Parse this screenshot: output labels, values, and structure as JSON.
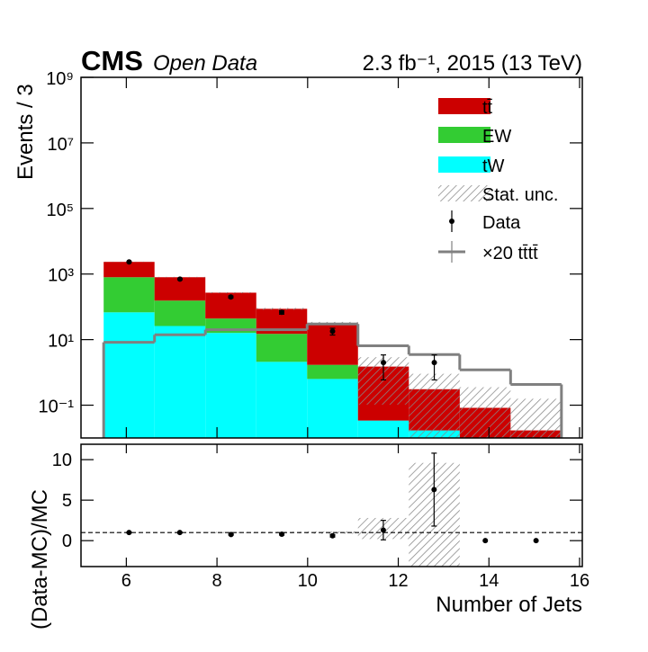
{
  "chart_data": [
    {
      "type": "stacked_histogram",
      "experiment": "CMS",
      "subtitle": "Open Data",
      "lumi_label": "2.3 fb⁻¹, 2015 (13 TeV)",
      "ylabel": "Events / 3",
      "log_y": true,
      "xlim": [
        5,
        16.06
      ],
      "xticks": [
        6,
        8,
        10,
        12,
        14,
        16
      ],
      "ylim": [
        0.01,
        1000000000
      ],
      "yticks": [
        {
          "value": 0.1,
          "label": "10⁻¹"
        },
        {
          "value": 10,
          "label": "10¹"
        },
        {
          "value": 1000,
          "label": "10³"
        },
        {
          "value": 100000,
          "label": "10⁵"
        },
        {
          "value": 10000000,
          "label": "10⁷"
        },
        {
          "value": 1000000000,
          "label": "10⁹"
        }
      ],
      "bins": [
        5.5,
        6.622,
        7.744,
        8.867,
        9.989,
        11.111,
        12.233,
        13.356,
        14.478,
        15.6
      ],
      "series": [
        {
          "name": "tt̄",
          "color": "#cc0000",
          "values": [
            1550,
            645,
            226,
            72,
            30,
            1.47,
            0.29,
            0.083,
            0.017
          ]
        },
        {
          "name": "EW",
          "color": "#33cc33",
          "values": [
            732,
            129,
            28,
            12.9,
            1.07,
            0,
            0,
            0,
            0
          ]
        },
        {
          "name": "tW",
          "color": "#00ffff",
          "values": [
            68,
            26,
            16,
            2.1,
            0.63,
            0.034,
            0.017,
            0,
            0
          ]
        }
      ],
      "stat_unc": {
        "name": "Stat. unc.",
        "color": "#888888",
        "values": [
          40,
          20,
          10,
          6,
          3,
          1.4,
          0.6,
          0.27,
          0.14
        ]
      },
      "data": {
        "name": "Data",
        "color": "#000000",
        "values": [
          2350,
          700,
          200,
          68,
          18,
          2,
          2,
          null,
          null
        ],
        "errors": [
          48,
          26,
          14,
          8.2,
          4.2,
          1.41,
          1.41,
          null,
          null
        ]
      },
      "signal": {
        "name": "×20 tt̄tt̄",
        "color": "#808080",
        "values": [
          8.3,
          14,
          20,
          20,
          30,
          6.5,
          3.5,
          1.2,
          0.43
        ]
      }
    },
    {
      "type": "ratio",
      "xlabel": "Number of Jets",
      "ylabel": "(Data-MC)/MC",
      "xlim": [
        5,
        16.06
      ],
      "xticks": [
        6,
        8,
        10,
        12,
        14,
        16
      ],
      "ylim": [
        -3.2,
        11.9
      ],
      "yticks": [
        0,
        5,
        10
      ],
      "reference_line": 1,
      "bins": [
        5.5,
        6.622,
        7.744,
        8.867,
        9.989,
        11.111,
        12.233,
        13.356,
        14.478,
        15.6
      ],
      "band_low": [
        0.97,
        0.96,
        0.93,
        0.9,
        0.85,
        0.2,
        -8,
        null,
        null
      ],
      "band_high": [
        1.03,
        1.04,
        1.07,
        1.1,
        1.15,
        2.8,
        9.6,
        null,
        null
      ],
      "x": [
        6.06,
        7.18,
        8.31,
        9.43,
        10.55,
        11.67,
        12.79,
        13.92,
        15.04
      ],
      "values": [
        1.0,
        1.0,
        0.75,
        0.8,
        0.6,
        1.3,
        6.3,
        0,
        0
      ],
      "errors": [
        0.03,
        0.04,
        0.07,
        0.12,
        0.15,
        1.2,
        4.5,
        null,
        null
      ]
    }
  ]
}
